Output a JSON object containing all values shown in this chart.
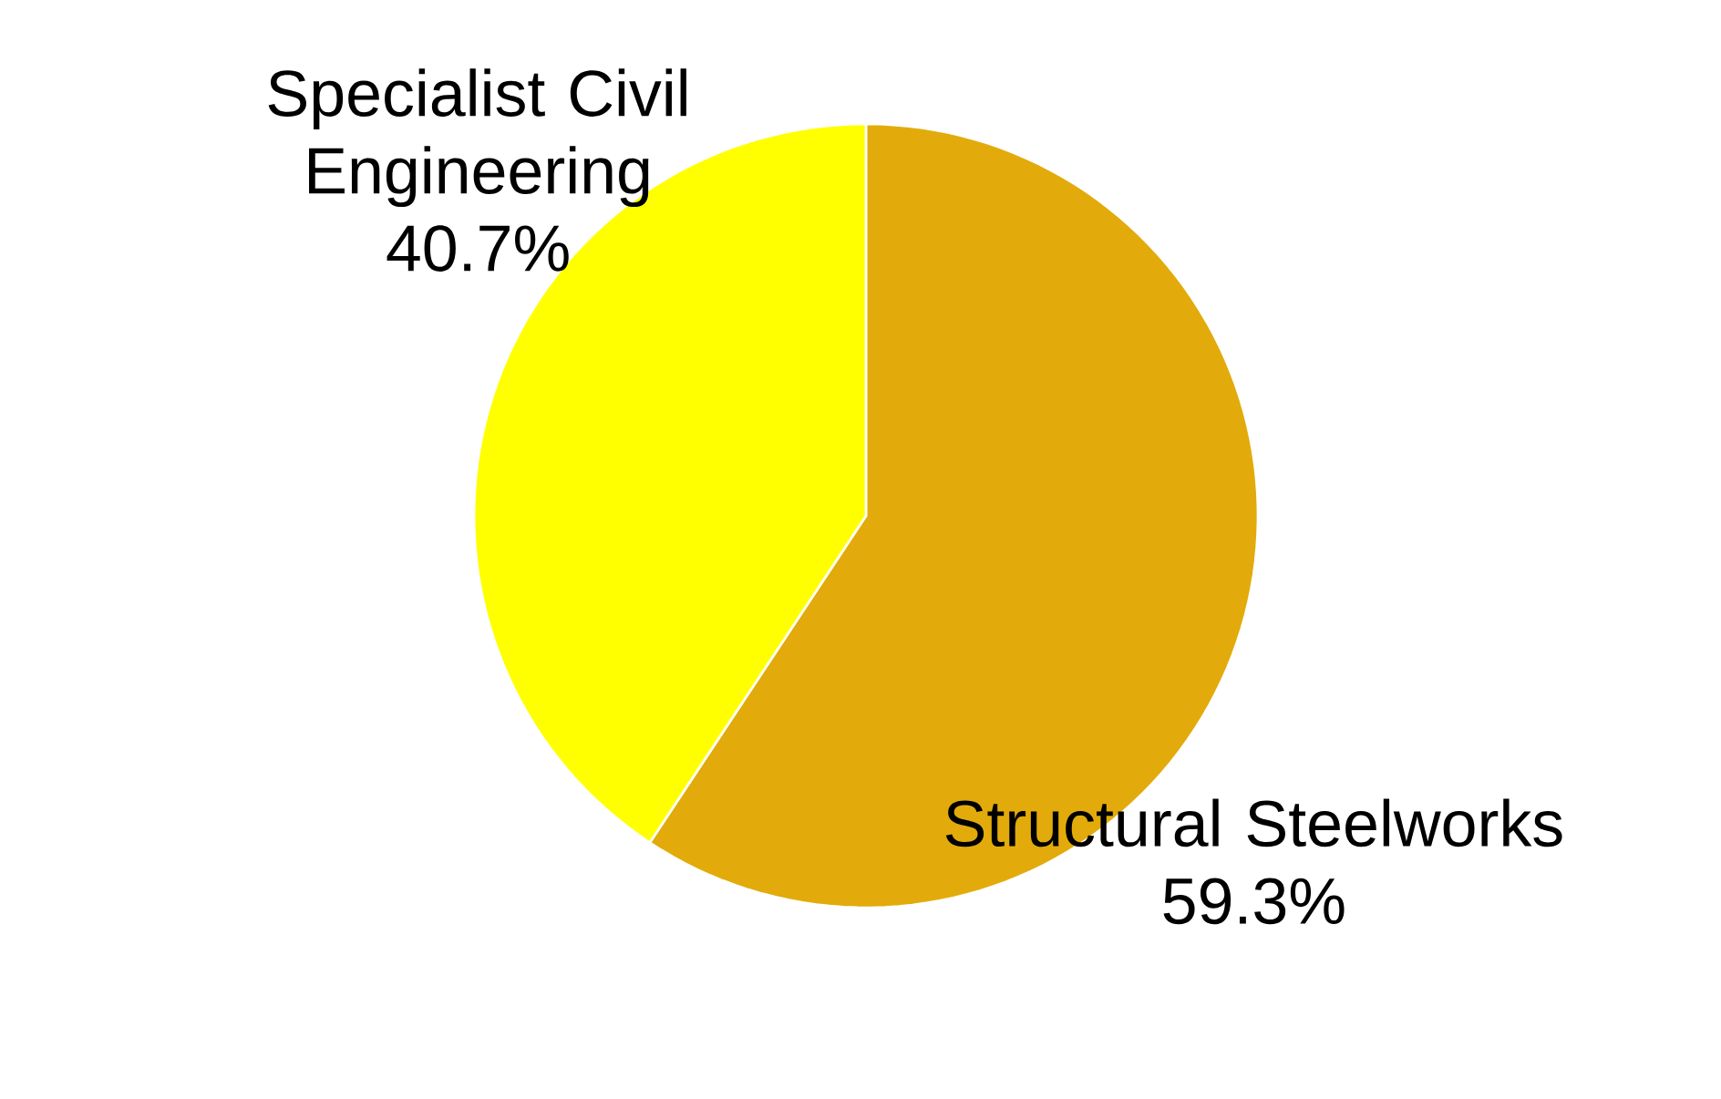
{
  "chart_data": {
    "type": "pie",
    "categories": [
      "Structural Steelworks",
      "Specialist Civil Engineering"
    ],
    "values": [
      59.3,
      40.7
    ],
    "value_labels": [
      "59.3%",
      "40.7%"
    ],
    "colors": [
      "#e2ab0b",
      "#ffff00"
    ]
  }
}
